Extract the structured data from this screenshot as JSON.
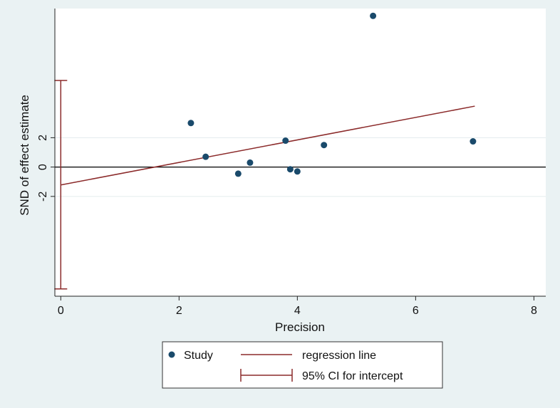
{
  "chart_data": {
    "type": "scatter",
    "title": "",
    "xlabel": "Precision",
    "ylabel": "SND of effect estimate",
    "xlim": [
      -0.1,
      8.2
    ],
    "ylim": [
      -8.8,
      10.8
    ],
    "x_ticks": [
      0,
      2,
      4,
      6,
      8
    ],
    "y_ticks": [
      -2,
      0,
      2
    ],
    "grid": "horizontal",
    "series": [
      {
        "name": "Study",
        "type": "scatter",
        "color": "#1a4a6b",
        "points": [
          {
            "x": 2.2,
            "y": 3.0
          },
          {
            "x": 2.45,
            "y": 0.7
          },
          {
            "x": 3.0,
            "y": -0.45
          },
          {
            "x": 3.2,
            "y": 0.3
          },
          {
            "x": 3.8,
            "y": 1.8
          },
          {
            "x": 3.88,
            "y": -0.15
          },
          {
            "x": 4.0,
            "y": -0.3
          },
          {
            "x": 4.45,
            "y": 1.5
          },
          {
            "x": 5.28,
            "y": 10.3
          },
          {
            "x": 6.97,
            "y": 1.75
          }
        ]
      },
      {
        "name": "regression line",
        "type": "line",
        "color": "#8b2a2a",
        "x": [
          0,
          7
        ],
        "y": [
          -1.22,
          4.15
        ]
      }
    ],
    "intercept_ci": {
      "name": "95% CI for intercept",
      "x": 0,
      "low": -8.3,
      "high": 5.9,
      "color": "#8b2a2a"
    },
    "reference_line_y": 0,
    "legend": {
      "position": "bottom",
      "entries": [
        "Study",
        "regression line",
        "95% CI for intercept"
      ]
    }
  }
}
